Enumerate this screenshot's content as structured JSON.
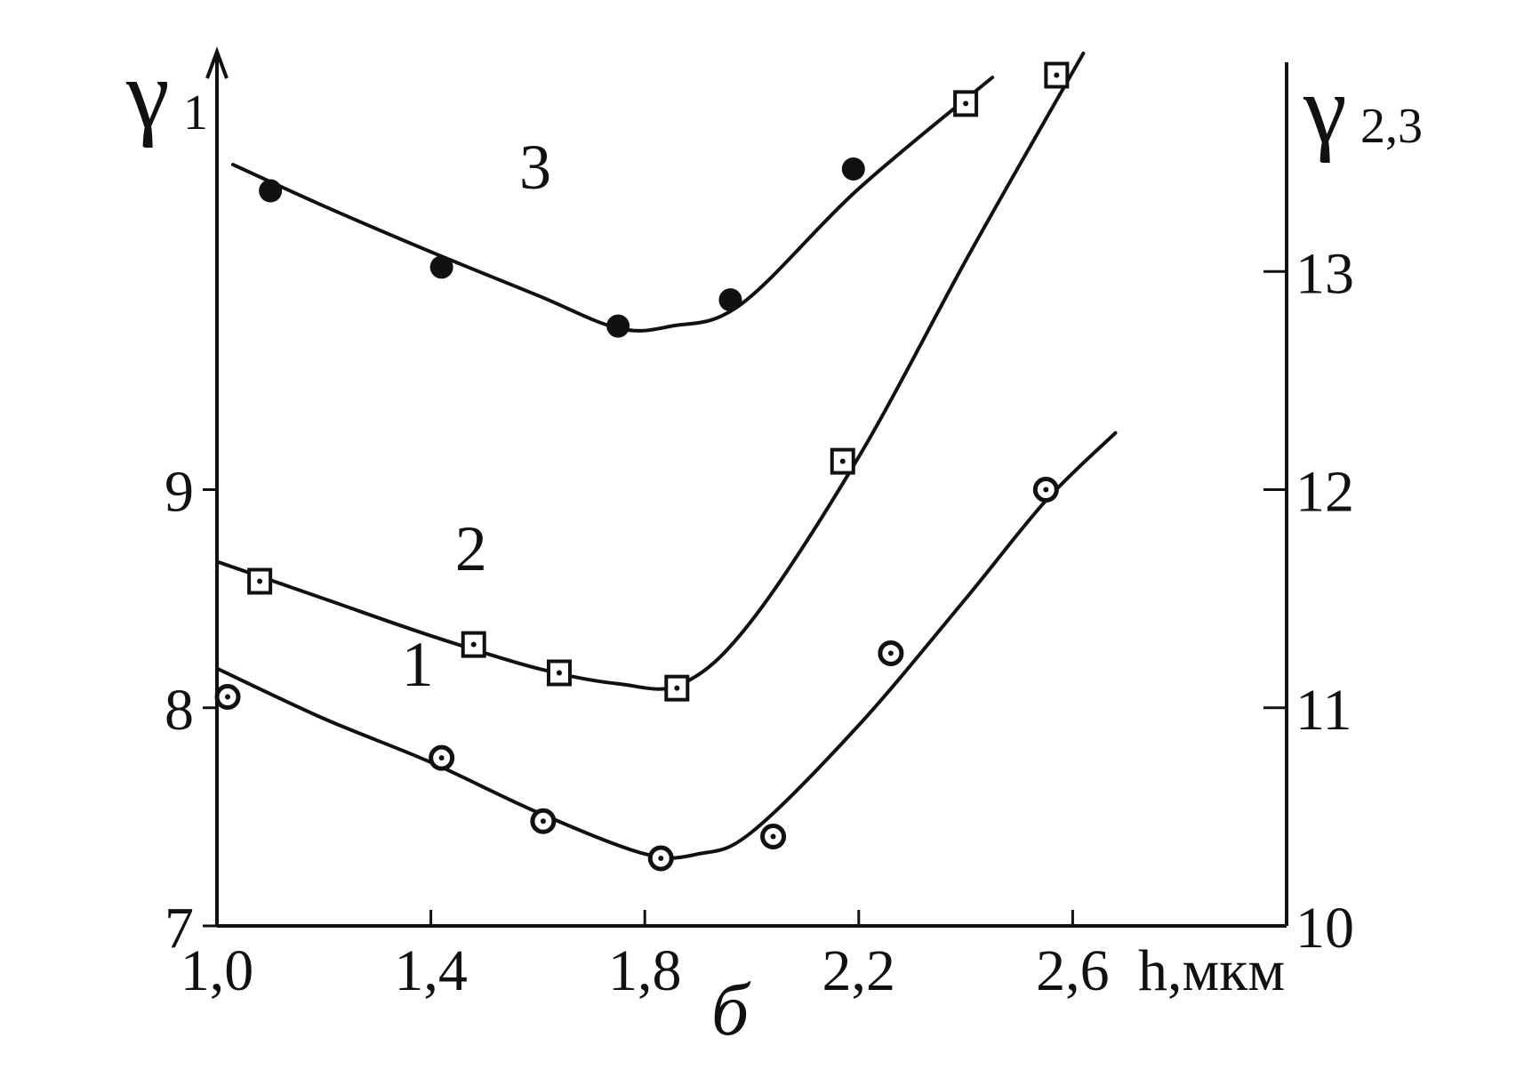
{
  "chart_data": {
    "type": "line",
    "left_axis": {
      "symbol": "γ",
      "subscript": "1",
      "ylim": [
        7,
        11
      ],
      "ticks": [
        {
          "value": 7,
          "label": "7"
        },
        {
          "value": 8,
          "label": "8"
        },
        {
          "value": 9,
          "label": "9"
        }
      ]
    },
    "right_axis": {
      "symbol": "γ",
      "subscript": "2,3",
      "ylim": [
        10,
        14
      ],
      "ticks": [
        {
          "value": 10,
          "label": "10"
        },
        {
          "value": 11,
          "label": "11"
        },
        {
          "value": 12,
          "label": "12"
        },
        {
          "value": 13,
          "label": "13"
        }
      ]
    },
    "x_axis": {
      "label": "h,мкм",
      "xlim": [
        1.0,
        3.0
      ],
      "ticks": [
        {
          "value": 1.0,
          "label": "1,0"
        },
        {
          "value": 1.4,
          "label": "1,4"
        },
        {
          "value": 1.8,
          "label": "1,8"
        },
        {
          "value": 2.2,
          "label": "2,2"
        },
        {
          "value": 2.6,
          "label": "2,6"
        }
      ]
    },
    "panel_label": "б",
    "series": [
      {
        "name": "1",
        "axis": "left",
        "marker": "circle-dot",
        "curve": [
          [
            1.0,
            8.18
          ],
          [
            1.2,
            7.95
          ],
          [
            1.4,
            7.75
          ],
          [
            1.6,
            7.52
          ],
          [
            1.8,
            7.33
          ],
          [
            1.9,
            7.33
          ],
          [
            2.0,
            7.43
          ],
          [
            2.2,
            7.92
          ],
          [
            2.4,
            8.5
          ],
          [
            2.55,
            8.95
          ],
          [
            2.68,
            9.26
          ]
        ],
        "points": [
          [
            1.02,
            8.05
          ],
          [
            1.42,
            7.77
          ],
          [
            1.61,
            7.48
          ],
          [
            1.83,
            7.31
          ],
          [
            2.04,
            7.41
          ],
          [
            2.26,
            8.25
          ],
          [
            2.55,
            9.0
          ]
        ]
      },
      {
        "name": "2",
        "axis": "right",
        "marker": "square-dot",
        "curve": [
          [
            1.0,
            11.67
          ],
          [
            1.2,
            11.5
          ],
          [
            1.4,
            11.33
          ],
          [
            1.6,
            11.18
          ],
          [
            1.75,
            11.11
          ],
          [
            1.87,
            11.11
          ],
          [
            2.0,
            11.4
          ],
          [
            2.2,
            12.15
          ],
          [
            2.4,
            13.05
          ],
          [
            2.55,
            13.7
          ],
          [
            2.62,
            14.0
          ]
        ],
        "points": [
          [
            1.08,
            11.58
          ],
          [
            1.48,
            11.29
          ],
          [
            1.64,
            11.16
          ],
          [
            1.86,
            11.09
          ],
          [
            2.17,
            12.13
          ],
          [
            2.4,
            13.77
          ],
          [
            2.57,
            13.9
          ]
        ]
      },
      {
        "name": "3",
        "axis": "right",
        "marker": "filled-circle",
        "curve": [
          [
            1.03,
            13.49
          ],
          [
            1.2,
            13.3
          ],
          [
            1.4,
            13.09
          ],
          [
            1.6,
            12.89
          ],
          [
            1.75,
            12.74
          ],
          [
            1.85,
            12.75
          ],
          [
            1.98,
            12.85
          ],
          [
            2.2,
            13.38
          ],
          [
            2.45,
            13.89
          ]
        ],
        "points": [
          [
            1.1,
            13.37
          ],
          [
            1.42,
            13.02
          ],
          [
            1.75,
            12.75
          ],
          [
            1.96,
            12.87
          ],
          [
            2.19,
            13.47
          ]
        ]
      }
    ]
  }
}
